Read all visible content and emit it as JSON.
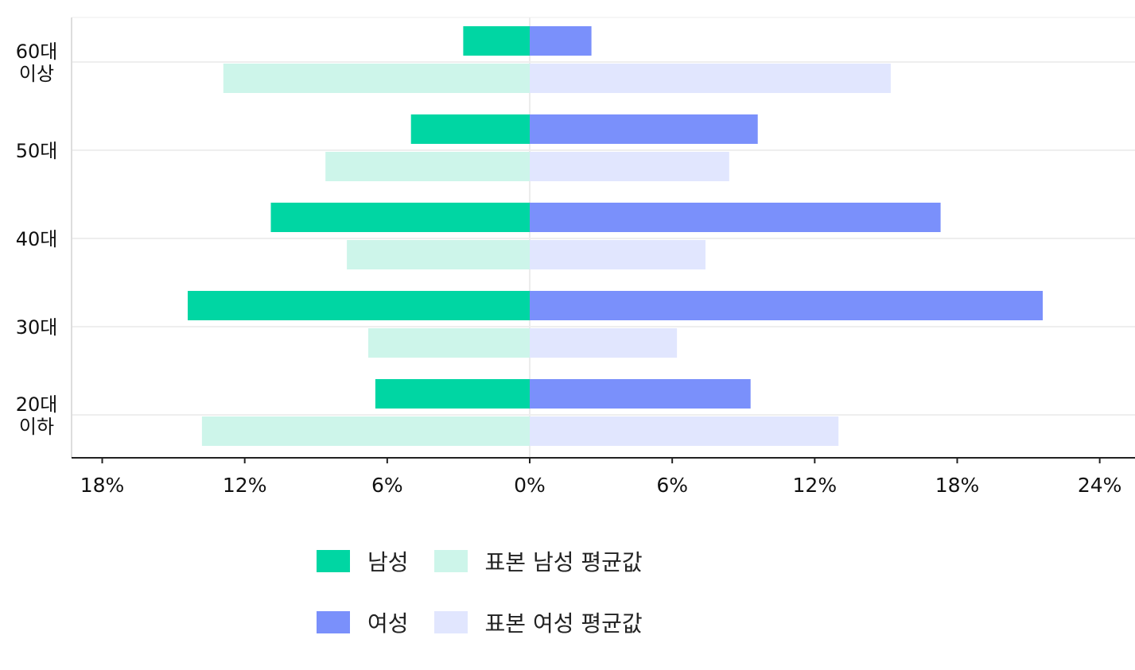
{
  "chart_data": {
    "type": "bar",
    "orientation": "horizontal",
    "layout": "diverging",
    "categories": [
      "60대 이상",
      "50대",
      "40대",
      "30대",
      "20대 이하"
    ],
    "category_lines": [
      [
        "60대",
        "이상"
      ],
      [
        "50대"
      ],
      [
        "40대"
      ],
      [
        "30대"
      ],
      [
        "20대",
        "이하"
      ]
    ],
    "series": [
      {
        "name": "남성",
        "side": "left",
        "color": "#00d6a3",
        "values": [
          2.8,
          5.0,
          10.9,
          14.4,
          6.5
        ]
      },
      {
        "name": "표본 남성 평균값",
        "side": "left",
        "color": "#cdf5ea",
        "values": [
          12.9,
          8.6,
          7.7,
          6.8,
          13.8
        ]
      },
      {
        "name": "여성",
        "side": "right",
        "color": "#7a90fb",
        "values": [
          2.6,
          9.6,
          17.3,
          21.6,
          9.3
        ]
      },
      {
        "name": "표본 여성 평균값",
        "side": "right",
        "color": "#e1e6fe",
        "values": [
          15.2,
          8.4,
          7.4,
          6.2,
          13.0
        ]
      }
    ],
    "x_ticks": [
      {
        "value": -18,
        "label": "18%"
      },
      {
        "value": -12,
        "label": "12%"
      },
      {
        "value": -6,
        "label": "6%"
      },
      {
        "value": 0,
        "label": "0%"
      },
      {
        "value": 6,
        "label": "6%"
      },
      {
        "value": 12,
        "label": "12%"
      },
      {
        "value": 18,
        "label": "18%"
      },
      {
        "value": 24,
        "label": "24%"
      }
    ],
    "xlim": [
      -19.3,
      25.5
    ],
    "grid": true,
    "legend_position": "bottom-center",
    "title": "",
    "xlabel": "",
    "ylabel": ""
  },
  "legend": {
    "rows": [
      [
        {
          "label": "남성",
          "color": "#00d6a3"
        },
        {
          "label": "표본 남성 평균값",
          "color": "#cdf5ea"
        }
      ],
      [
        {
          "label": "여성",
          "color": "#7a90fb"
        },
        {
          "label": "표본 여성 평균값",
          "color": "#e1e6fe"
        }
      ]
    ]
  }
}
